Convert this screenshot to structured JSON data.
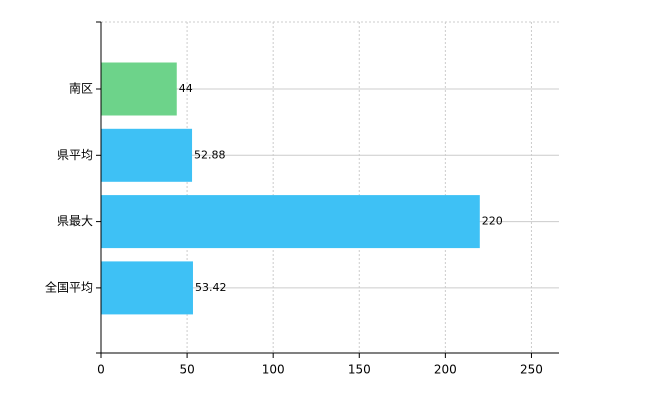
{
  "chart_data": {
    "type": "barh",
    "categories": [
      "南区",
      "県平均",
      "県最大",
      "全国平均"
    ],
    "values": [
      44,
      52.88,
      220,
      53.42
    ],
    "colors": [
      "#6dd38a",
      "#3ec1f5",
      "#3ec1f5",
      "#3ec1f5"
    ],
    "xlim": [
      0,
      266
    ],
    "xticks": [
      0,
      50,
      100,
      150,
      200,
      250
    ],
    "grid": true
  }
}
